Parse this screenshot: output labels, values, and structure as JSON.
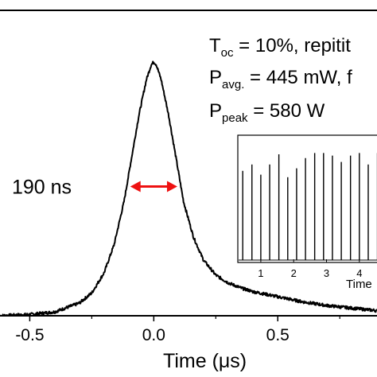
{
  "annotations": {
    "line1": {
      "main": "T",
      "sub": "oc",
      "rest": " = 10%, repitit"
    },
    "line2": {
      "main": "P",
      "sub": "avg.",
      "rest": " = 445 mW, f"
    },
    "line3": {
      "main": "P",
      "sub": "peak",
      "rest": " = 580 W"
    },
    "fwhm_label": "190 ns"
  },
  "colors": {
    "fwhm": "#ee1111",
    "trace": "#000000"
  },
  "chart_data": [
    {
      "type": "line",
      "title": "",
      "xlabel": "Time (μs)",
      "ylabel": "",
      "xlim": [
        -0.62,
        0.9
      ],
      "ylim": [
        0,
        1.05
      ],
      "xticks": [
        -0.5,
        0.0,
        0.5
      ],
      "xtick_labels": [
        "-0.5",
        "0.0",
        "0.5"
      ],
      "grid": false,
      "series": [
        {
          "x": [
            -0.62,
            -0.5,
            -0.4,
            -0.3,
            -0.25,
            -0.2,
            -0.16,
            -0.12,
            -0.09,
            -0.06,
            -0.03,
            -0.01,
            0.0,
            0.01,
            0.03,
            0.06,
            0.09,
            0.12,
            0.16,
            0.2,
            0.25,
            0.3,
            0.35,
            0.4,
            0.5,
            0.6,
            0.7,
            0.8,
            0.9
          ],
          "y": [
            0.0,
            0.005,
            0.015,
            0.05,
            0.09,
            0.17,
            0.28,
            0.45,
            0.62,
            0.79,
            0.93,
            0.99,
            1.0,
            0.99,
            0.93,
            0.79,
            0.62,
            0.45,
            0.31,
            0.22,
            0.16,
            0.13,
            0.11,
            0.095,
            0.075,
            0.055,
            0.04,
            0.03,
            0.02
          ]
        }
      ],
      "annotation": {
        "text": "190 ns",
        "fwhm_from": -0.095,
        "fwhm_to": 0.095,
        "level": 0.5
      }
    },
    {
      "type": "line",
      "title": "",
      "xlabel": "Time",
      "ylabel": "",
      "xlim": [
        0.3,
        4.9
      ],
      "ylim": [
        0,
        1
      ],
      "xticks": [
        1,
        2,
        3,
        4
      ],
      "xtick_labels": [
        "1",
        "2",
        "3",
        "4"
      ],
      "grid": false,
      "series": [
        {
          "pulse_times": [
            0.45,
            0.73,
            1.0,
            1.27,
            1.55,
            1.82,
            2.09,
            2.36,
            2.64,
            2.91,
            3.18,
            3.45,
            3.73,
            4.0,
            4.27,
            4.55
          ],
          "pulse_heights": [
            0.72,
            0.77,
            0.69,
            0.77,
            0.85,
            0.67,
            0.74,
            0.82,
            0.86,
            0.86,
            0.84,
            0.79,
            0.84,
            0.86,
            0.77,
            0.86
          ]
        }
      ]
    }
  ]
}
